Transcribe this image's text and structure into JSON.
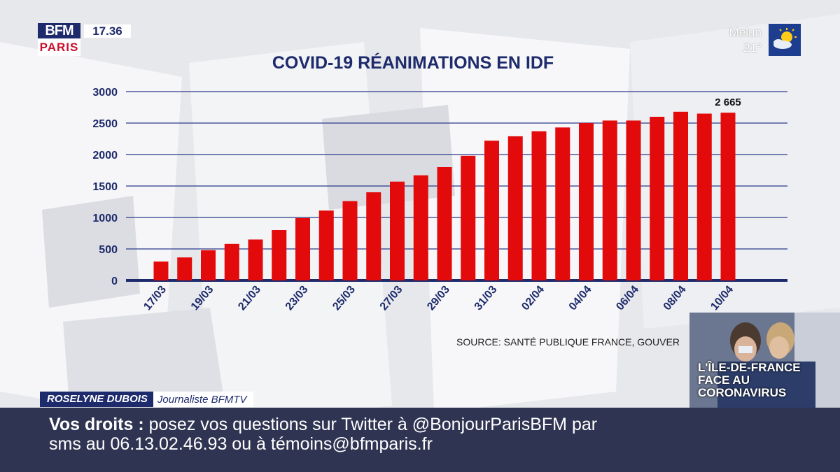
{
  "brand": {
    "logo_top": "BFM",
    "logo_bottom": "PARIS",
    "time": "17.36"
  },
  "weather": {
    "city": "Melun",
    "temperature": "21°",
    "icon": "sun-cloud-icon"
  },
  "chart_data": {
    "type": "bar",
    "title": "COVID-19 RÉANIMATIONS EN IDF",
    "categories": [
      "17/03",
      "18/03",
      "19/03",
      "20/03",
      "21/03",
      "22/03",
      "23/03",
      "24/03",
      "25/03",
      "26/03",
      "27/03",
      "28/03",
      "29/03",
      "30/03",
      "31/03",
      "01/04",
      "02/04",
      "03/04",
      "04/04",
      "05/04",
      "06/04",
      "07/04",
      "08/04",
      "09/04",
      "10/04"
    ],
    "tick_labels": [
      "17/03",
      "19/03",
      "21/03",
      "23/03",
      "25/03",
      "27/03",
      "29/03",
      "31/03",
      "02/04",
      "04/04",
      "06/04",
      "08/04",
      "10/04"
    ],
    "values": [
      300,
      365,
      480,
      580,
      650,
      800,
      990,
      1110,
      1260,
      1400,
      1570,
      1670,
      1800,
      1980,
      2220,
      2290,
      2370,
      2430,
      2500,
      2540,
      2540,
      2600,
      2680,
      2650,
      2665
    ],
    "ylim": [
      0,
      3000
    ],
    "yticks": [
      0,
      500,
      1000,
      1500,
      2000,
      2500,
      3000
    ],
    "grid": true,
    "bar_color": "#e20a0a",
    "annotations": [
      {
        "category": "10/04",
        "text": "2 665"
      }
    ]
  },
  "source": "SOURCE: SANTÉ PUBLIQUE FRANCE, GOUVER",
  "inset": {
    "line1": "L'ÎLE-DE-FRANCE",
    "line2": "FACE AU",
    "line3": "CORONAVIRUS"
  },
  "presenter": {
    "name": "ROSELYNE DUBOIS",
    "role": "Journaliste BFMTV"
  },
  "ticker": {
    "label": "Vos droits :",
    "line1_text": " posez vos questions sur Twitter à @BonjourParisBFM par",
    "line2_text": "sms au 06.13.02.46.93 ou à témoins@bfmparis.fr"
  },
  "colors": {
    "navy": "#1d2a6b",
    "red": "#e20a0a",
    "ticker_bg": "#2f3452"
  }
}
